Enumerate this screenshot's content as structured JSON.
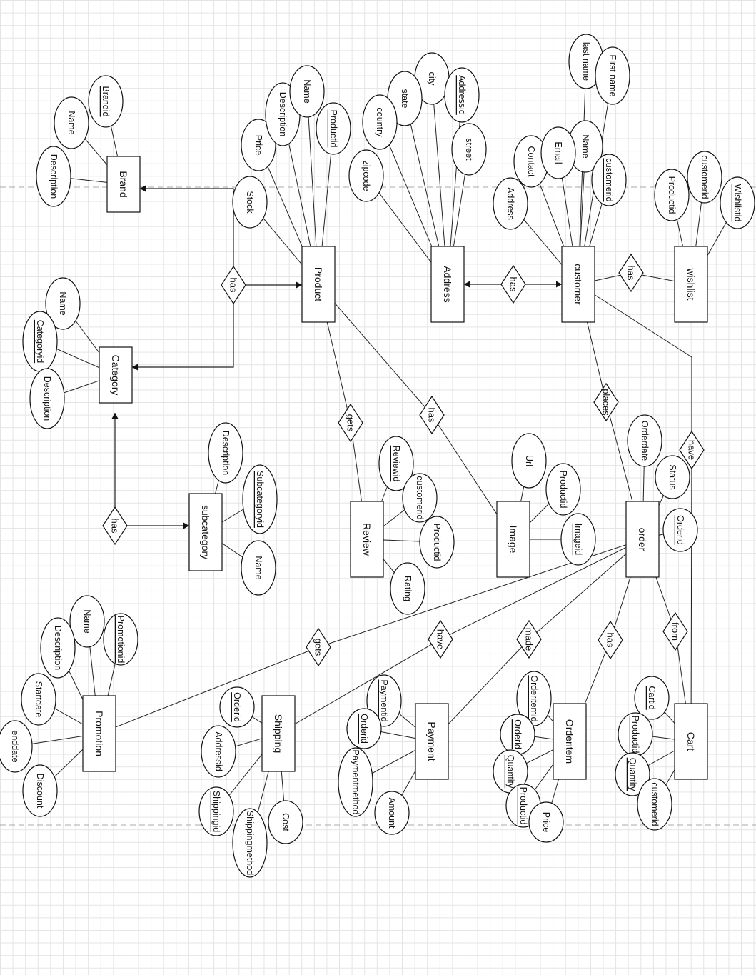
{
  "diagram": {
    "entities": {
      "brand": "Brand",
      "category": "Category",
      "subcategory": "subcategory",
      "product": "Product",
      "address": "Address",
      "customer": "customer",
      "wishlist": "wishlist",
      "review": "Review",
      "image": "Image",
      "order": "order",
      "promotion": "Promotion",
      "shipping": "Shipping",
      "payment": "Payment",
      "orderitem": "Orderitem",
      "cart": "Cart"
    },
    "relationships": {
      "brand_has": "has",
      "subcategory_has": "has",
      "address_has": "has",
      "wishlist_has": "has",
      "product_gets": "gets",
      "product_has_image": "has",
      "customer_places": "places",
      "customer_have": "have",
      "order_gets": "gets",
      "order_have": "have",
      "order_made": "made",
      "order_has": "has",
      "order_from": "from"
    },
    "attributes": {
      "brand": {
        "brandid": "Brandid",
        "name": "Name",
        "description": "Description"
      },
      "category": {
        "name": "Name",
        "categoryid": "Categoryid",
        "description": "Description"
      },
      "subcategory": {
        "description": "Description",
        "subcategoryid": "Subcategoryid",
        "name": "Name"
      },
      "product": {
        "price": "Price",
        "description": "Description",
        "name": "Name",
        "productid": "Productid",
        "stock": "Stock"
      },
      "address": {
        "city": "city",
        "state": "state",
        "addressid": "Addressid",
        "country": "country",
        "street": "street",
        "zipcode": "zipcode"
      },
      "customer": {
        "last_name": "last name",
        "first_name": "First name",
        "name": "Name",
        "contact": "Contact",
        "email": "Email",
        "customerid": "customerid",
        "address": "Address"
      },
      "wishlist": {
        "customerid": "customerid",
        "productid": "Productid",
        "wishlistid": "Wishlistid"
      },
      "review": {
        "reviewid": "Reviewid",
        "customerid": "customerid",
        "productid": "Productid",
        "rating": "Rating"
      },
      "image": {
        "url": "Url",
        "productid": "Productid",
        "imageid": "Imageid"
      },
      "order": {
        "orderdate": "Orderdate",
        "status": "Status",
        "orderid": "Orderid"
      },
      "promotion": {
        "name": "Name",
        "promotionid": "Promotionid",
        "description": "Description",
        "startdate": "Startdate",
        "enddate": "enddate",
        "discount": "Discount"
      },
      "shipping": {
        "orderid": "Orderid",
        "addressid": "Addressid",
        "shippingid": "Shippingid",
        "shippingmethod": "Shippingmethod",
        "cost": "Cost"
      },
      "payment": {
        "paymentid": "Paymentid",
        "orderid": "Orderid",
        "paymentmethod": "Paymentmethod",
        "amount": "Amount"
      },
      "orderitem": {
        "orderitemid": "Orderitemid",
        "orderid": "Orderid",
        "quantity": "Quantity",
        "productid": "Productid",
        "price": "Price"
      },
      "cart": {
        "cartid": "Cartid",
        "productid": "Productid",
        "quantity": "Quantity",
        "customerid": "customerid"
      }
    }
  }
}
